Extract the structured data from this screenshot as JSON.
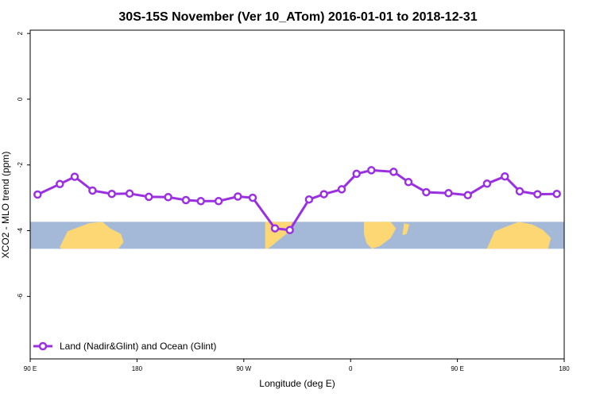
{
  "chart_data": {
    "type": "line",
    "title": "30S-15S November (Ver 10_ATom)   2016-01-01 to 2018-12-31",
    "xlabel": "Longitude (deg E)",
    "ylabel": "XCO2 - MLO trend (ppm)",
    "x_ticks": [
      "90 E",
      "180",
      "90 W",
      "0",
      "90 E",
      "180"
    ],
    "y_ticks": [
      "2",
      "0",
      "-2",
      "-4",
      "-6"
    ],
    "xlim": [
      90,
      450
    ],
    "ylim": [
      -7.9,
      2.1
    ],
    "grid": false,
    "legend_position": "bottom-left",
    "x": [
      95,
      110,
      120,
      132,
      145,
      157,
      170,
      183,
      195,
      205,
      217,
      230,
      240,
      255,
      265,
      278,
      288,
      300,
      310,
      320,
      335,
      345,
      357,
      372,
      385,
      398,
      410,
      420,
      432,
      445
    ],
    "series": [
      {
        "name": "Land (Nadir&Glint) and Ocean (Glint)",
        "color": "#9b30e0",
        "values": [
          -2.9,
          -2.58,
          -2.36,
          -2.78,
          -2.88,
          -2.87,
          -2.97,
          -2.98,
          -3.07,
          -3.1,
          -3.1,
          -2.96,
          -3.0,
          -3.93,
          -3.98,
          -3.05,
          -2.89,
          -2.74,
          -2.27,
          -2.16,
          -2.21,
          -2.52,
          -2.83,
          -2.86,
          -2.92,
          -2.57,
          -2.35,
          -2.8,
          -2.89,
          -2.88
        ]
      }
    ],
    "map_band": {
      "y_top": -3.73,
      "y_bottom": -4.55,
      "ocean_color": "#a4b9d7",
      "land_color": "#fcd774"
    }
  }
}
